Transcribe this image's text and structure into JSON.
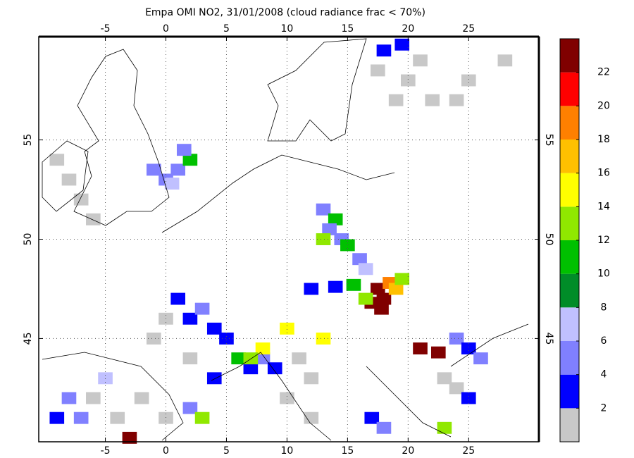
{
  "chart_data": {
    "type": "map",
    "title": "Empa OMI NO2, 31/01/2008 (cloud radiance frac < 70%)",
    "xlim": [
      -10.5,
      30.8
    ],
    "ylim": [
      39.8,
      60.2
    ],
    "xticks": [
      -5,
      0,
      5,
      10,
      15,
      20,
      25
    ],
    "yticks": [
      45,
      50,
      55
    ],
    "grid": true,
    "colorbar": {
      "clim": [
        0,
        24
      ],
      "ticks": [
        2,
        4,
        6,
        8,
        10,
        12,
        14,
        16,
        18,
        20,
        22
      ],
      "colors": [
        "#c8c8c8",
        "#0000ff",
        "#8080ff",
        "#c0c0ff",
        "#008c28",
        "#00c000",
        "#90e800",
        "#ffff00",
        "#ffc000",
        "#ff8000",
        "#ff0000",
        "#800000"
      ]
    },
    "cells": [
      [
        17.5,
        47.5,
        23
      ],
      [
        18,
        47,
        23
      ],
      [
        17,
        46.8,
        22
      ],
      [
        18.5,
        47.8,
        19
      ],
      [
        19,
        47.5,
        16
      ],
      [
        17.8,
        46.5,
        23
      ],
      [
        19.5,
        48,
        12
      ],
      [
        16.5,
        47,
        12
      ],
      [
        -1,
        53.5,
        5
      ],
      [
        0,
        53,
        4
      ],
      [
        1,
        53.5,
        5
      ],
      [
        2,
        54,
        10
      ],
      [
        1.5,
        54.5,
        4
      ],
      [
        0.5,
        52.8,
        7
      ],
      [
        13,
        51.5,
        4
      ],
      [
        14,
        51,
        10
      ],
      [
        13.5,
        50.5,
        5
      ],
      [
        14.5,
        50,
        4
      ],
      [
        15,
        49.7,
        11
      ],
      [
        16,
        49,
        4
      ],
      [
        16.5,
        48.5,
        6
      ],
      [
        13,
        50,
        12
      ],
      [
        18,
        59.5,
        3
      ],
      [
        19.5,
        59.8,
        3
      ],
      [
        21,
        59,
        1
      ],
      [
        17.5,
        58.5,
        1
      ],
      [
        20,
        58,
        1
      ],
      [
        22,
        57,
        1
      ],
      [
        19,
        57,
        1
      ],
      [
        1,
        47,
        3
      ],
      [
        2,
        46,
        3
      ],
      [
        3,
        46.5,
        5
      ],
      [
        4,
        45.5,
        3
      ],
      [
        5,
        45,
        3
      ],
      [
        6,
        44,
        10
      ],
      [
        7,
        43.5,
        3
      ],
      [
        8,
        44,
        4
      ],
      [
        9,
        43.5,
        3
      ],
      [
        0,
        46,
        1
      ],
      [
        -1,
        45,
        1
      ],
      [
        2,
        44,
        1
      ],
      [
        4,
        43,
        3
      ],
      [
        11,
        44,
        1
      ],
      [
        12,
        43,
        1
      ],
      [
        10,
        42,
        1
      ],
      [
        12,
        41,
        1
      ],
      [
        8,
        44.5,
        14
      ],
      [
        7,
        44,
        12
      ],
      [
        12,
        47.5,
        3
      ],
      [
        14,
        47.6,
        3
      ],
      [
        15.5,
        47.7,
        10
      ],
      [
        -9,
        41,
        3
      ],
      [
        -8,
        42,
        4
      ],
      [
        -7,
        41,
        5
      ],
      [
        -5,
        43,
        6
      ],
      [
        -3,
        40,
        22
      ],
      [
        -6,
        42,
        1
      ],
      [
        -4,
        41,
        1
      ],
      [
        -2,
        42,
        1
      ],
      [
        0,
        41,
        1
      ],
      [
        2,
        41.5,
        4
      ],
      [
        3,
        41,
        12
      ],
      [
        24,
        45,
        5
      ],
      [
        25,
        44.5,
        3
      ],
      [
        26,
        44,
        4
      ],
      [
        23,
        43,
        1
      ],
      [
        24,
        42.5,
        1
      ],
      [
        25,
        42,
        3
      ],
      [
        23,
        40.5,
        12
      ],
      [
        21,
        44.5,
        23
      ],
      [
        22.5,
        44.3,
        22
      ],
      [
        -9,
        54,
        1
      ],
      [
        -8,
        53,
        1
      ],
      [
        -7,
        52,
        1
      ],
      [
        -6,
        51,
        1
      ],
      [
        13,
        45,
        14
      ],
      [
        10,
        45.5,
        15
      ],
      [
        25,
        58,
        1
      ],
      [
        28,
        59,
        1
      ],
      [
        24,
        57,
        1
      ],
      [
        17,
        41,
        3
      ],
      [
        18,
        40.5,
        4
      ]
    ]
  }
}
